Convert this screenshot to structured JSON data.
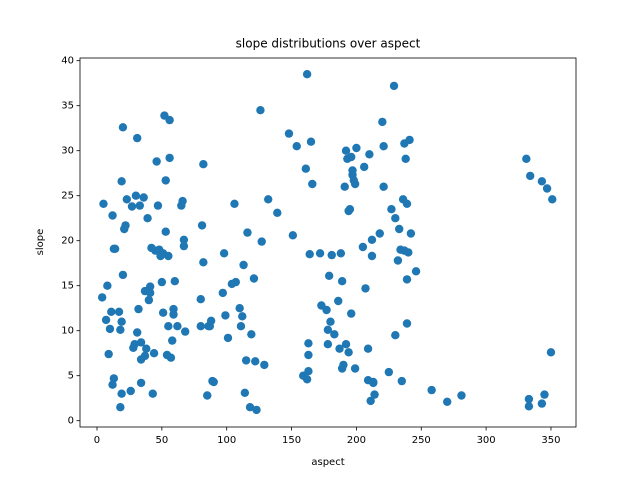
{
  "chart_data": {
    "type": "scatter",
    "title": "slope distributions over aspect",
    "x_label": "aspect",
    "y_label": "slope",
    "color": "#1f77b4",
    "xlim": [
      -13.1,
      369.3
    ],
    "ylim": [
      -0.7,
      40.3
    ],
    "xticks": [
      0,
      50,
      100,
      150,
      200,
      250,
      300,
      350
    ],
    "yticks": [
      0,
      5,
      10,
      15,
      20,
      25,
      30,
      35,
      40
    ],
    "x": [
      5,
      4,
      7,
      8,
      9,
      10,
      11,
      12,
      13,
      12,
      13,
      14,
      17,
      18,
      18,
      19,
      19,
      19,
      20,
      20,
      21,
      22,
      23,
      26,
      27,
      28,
      29,
      30,
      31,
      31,
      32,
      33,
      34,
      34,
      34,
      36,
      37,
      37,
      38,
      39,
      40,
      40,
      41,
      41,
      42,
      43,
      44,
      45,
      46,
      47,
      48,
      49,
      50,
      51,
      51,
      52,
      53,
      53,
      54,
      55,
      55,
      56,
      56,
      57,
      58,
      59,
      59,
      60,
      62,
      65,
      66,
      67,
      67,
      68,
      80,
      80,
      81,
      82,
      82,
      85,
      86,
      87,
      88,
      89,
      90,
      97,
      98,
      99,
      101,
      104,
      106,
      107,
      110,
      111,
      112,
      113,
      114,
      115,
      116,
      118,
      119,
      121,
      122,
      123,
      126,
      127,
      129,
      132,
      139,
      148,
      151,
      154,
      159,
      161,
      162,
      162,
      163,
      163,
      163,
      164,
      165,
      166,
      172,
      173,
      177,
      178,
      178,
      179,
      180,
      181,
      183,
      186,
      187,
      188,
      189,
      189,
      190,
      191,
      192,
      192,
      193,
      194,
      194,
      195,
      196,
      196,
      197,
      197,
      198,
      199,
      199,
      200,
      205,
      206,
      207,
      209,
      209,
      210,
      211,
      212,
      212,
      213,
      213,
      214,
      218,
      220,
      221,
      221,
      225,
      227,
      229,
      230,
      230,
      232,
      233,
      234,
      235,
      236,
      237,
      237,
      238,
      239,
      239,
      239,
      240,
      241,
      242,
      246,
      258,
      270,
      281,
      331,
      333,
      333,
      334,
      343,
      343,
      345,
      347,
      350,
      351
    ],
    "values": [
      24.1,
      13.7,
      11.2,
      15,
      7.4,
      10.2,
      12.1,
      4,
      4.7,
      22.8,
      19.1,
      19.1,
      12.1,
      1.5,
      10.1,
      26.6,
      3,
      11,
      32.6,
      16.2,
      21.3,
      21.7,
      24.6,
      3.3,
      23.8,
      8.1,
      8.5,
      25,
      31.4,
      9.8,
      12.4,
      23.9,
      4.2,
      8.7,
      6.8,
      24.8,
      14.4,
      7.2,
      8,
      22.5,
      13.4,
      14.5,
      14.9,
      14.2,
      19.2,
      3,
      7.5,
      18.9,
      28.8,
      23.9,
      19,
      18.3,
      15.4,
      12,
      18.6,
      33.9,
      26.7,
      21,
      7.3,
      18.3,
      10.5,
      29.2,
      33.4,
      7,
      8.9,
      12.4,
      11.8,
      15.5,
      10.5,
      23.9,
      24.4,
      20.1,
      19.4,
      9.9,
      13.5,
      10.5,
      21.7,
      17.6,
      28.5,
      2.8,
      10.5,
      10.5,
      11.1,
      4.4,
      4.3,
      14.2,
      18.6,
      11.7,
      9.2,
      15.2,
      24.1,
      15.4,
      12.5,
      10.5,
      11.6,
      17.3,
      3.1,
      6.7,
      20.9,
      1.5,
      9.6,
      15.8,
      6.6,
      1.2,
      34.5,
      19.9,
      6.2,
      24.6,
      23.1,
      31.9,
      20.6,
      30.5,
      5,
      28,
      38.5,
      4.6,
      5.5,
      8.6,
      7.3,
      18.5,
      31,
      26.3,
      18.6,
      12.8,
      12.3,
      8.5,
      10.1,
      16.1,
      11,
      18.4,
      9.6,
      13.3,
      8,
      18.6,
      15.5,
      5.8,
      6.2,
      26,
      30,
      8.5,
      29.1,
      23.3,
      7.6,
      23.5,
      29.3,
      11.9,
      27.3,
      27.8,
      26.7,
      26.3,
      5.8,
      30.3,
      19.3,
      28.2,
      14.7,
      8,
      4.5,
      29.6,
      2.2,
      18.3,
      20.1,
      4.2,
      4.3,
      2.9,
      20.8,
      33.2,
      30.5,
      26,
      5.4,
      23.5,
      37.2,
      9.5,
      22.5,
      17.8,
      21.3,
      19,
      4.4,
      24.6,
      30.8,
      18.9,
      29.1,
      10.8,
      15.7,
      24.1,
      18.7,
      31.2,
      20.8,
      16.6,
      3.4,
      2.1,
      2.8,
      29.1,
      1.6,
      2.4,
      27.2,
      1.9,
      26.6,
      2.9,
      25.8,
      7.6,
      24.6
    ]
  }
}
